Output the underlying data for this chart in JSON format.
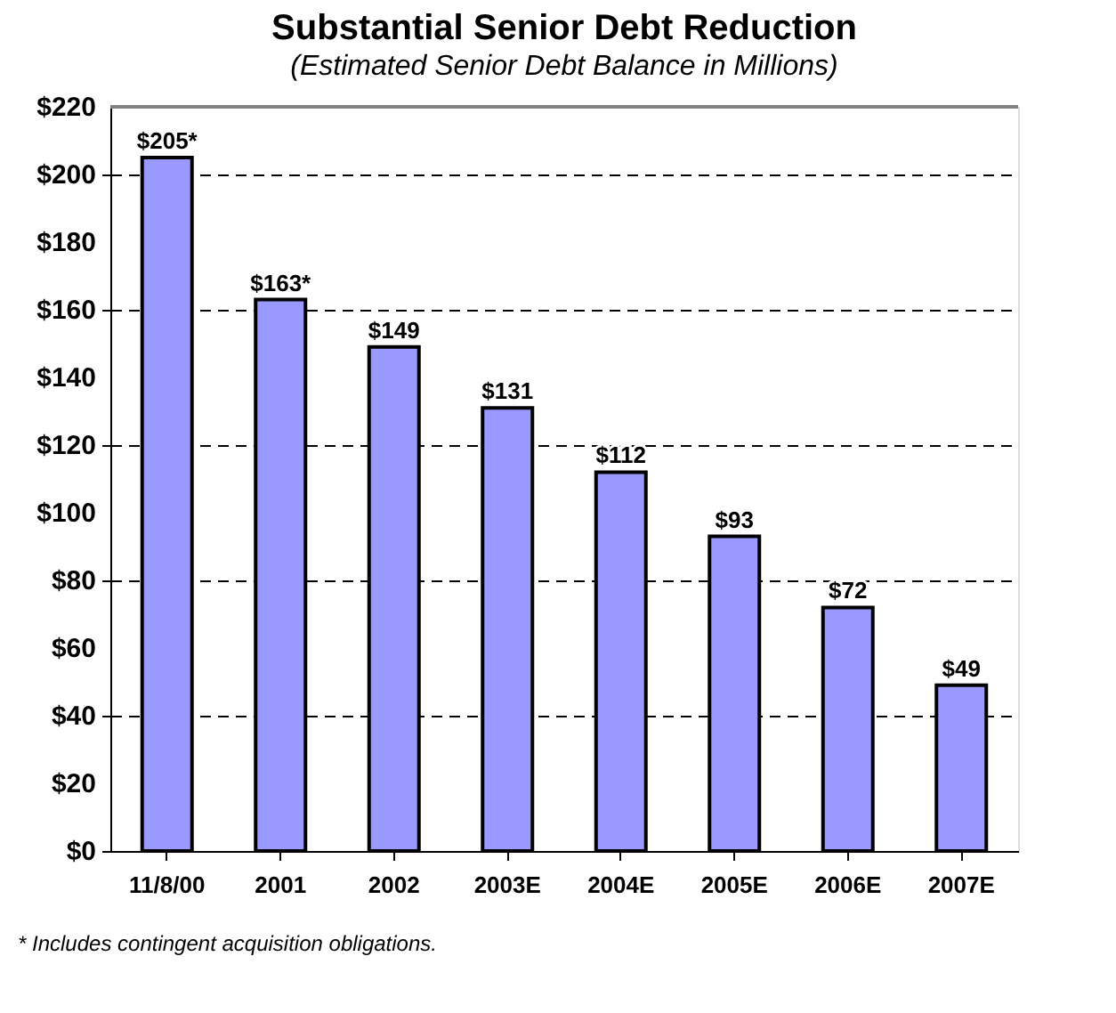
{
  "chart_data": {
    "type": "bar",
    "title": "Substantial Senior Debt Reduction",
    "subtitle": "(Estimated Senior Debt Balance in Millions)",
    "categories": [
      "11/8/00",
      "2001",
      "2002",
      "2003E",
      "2004E",
      "2005E",
      "2006E",
      "2007E"
    ],
    "values": [
      205,
      163,
      149,
      131,
      112,
      93,
      72,
      49
    ],
    "value_labels": [
      "$205*",
      "$163*",
      "$149",
      "$131",
      "$112",
      "$93",
      "$72",
      "$49"
    ],
    "color": "#9999ff",
    "ylim": [
      0,
      220
    ],
    "yticks": [
      {
        "value": 0,
        "label": "$0"
      },
      {
        "value": 20,
        "label": "$20"
      },
      {
        "value": 40,
        "label": "$40"
      },
      {
        "value": 60,
        "label": "$60"
      },
      {
        "value": 80,
        "label": "$80"
      },
      {
        "value": 100,
        "label": "$100"
      },
      {
        "value": 120,
        "label": "$120"
      },
      {
        "value": 140,
        "label": "$140"
      },
      {
        "value": 160,
        "label": "$160"
      },
      {
        "value": 180,
        "label": "$180"
      },
      {
        "value": 200,
        "label": "$200"
      },
      {
        "value": 220,
        "label": "$220"
      }
    ],
    "grid": "y",
    "annotations": [
      "* Includes contingent acquisition obligations."
    ]
  }
}
